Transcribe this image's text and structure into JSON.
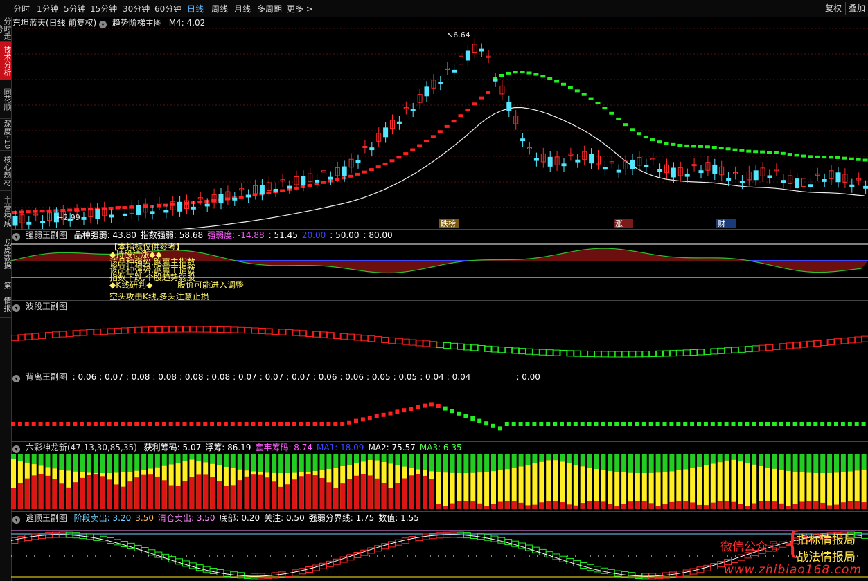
{
  "periods": [
    "分时",
    "1分钟",
    "5分钟",
    "15分钟",
    "30分钟",
    "60分钟",
    "日线",
    "周线",
    "月线",
    "多周期",
    "更多 >"
  ],
  "active_period": "日线",
  "top_right": {
    "fuquan": "复权",
    "diejia": "叠加"
  },
  "left_tabs": [
    "分时走势",
    "技术分析",
    "同花顺",
    "深度F10",
    "核心题材",
    "主营构成",
    "龙虎数据",
    "第一情报"
  ],
  "active_tab": "技术分析",
  "main": {
    "title": "东坦蓝天(日线 前复权)",
    "indicator": "趋势阶梯主图",
    "m4": "M4: 4.02",
    "high_label": "6.64",
    "low_label": "←2.99",
    "flags": [
      "跌榜",
      "涨",
      "财"
    ]
  },
  "panel1": {
    "name": "强弱王副图",
    "items": [
      {
        "label": "品种强弱: ",
        "value": "43.80",
        "color": "#ffffff"
      },
      {
        "label": "指数强弱: ",
        "value": "58.68",
        "color": "#ffffff"
      },
      {
        "label": "强弱度: ",
        "value": "-14.88",
        "color": "#ff5bff"
      },
      {
        "label": ": ",
        "value": "51.45",
        "color": "#ffffff"
      },
      {
        "label": "",
        "value": "20.00",
        "color": "#3a46ff"
      },
      {
        "label": ": ",
        "value": "50.00",
        "color": "#ffffff"
      },
      {
        "label": ": ",
        "value": "80.00",
        "color": "#ffffff"
      }
    ],
    "notes": [
      "【本指标仅供参考】",
      "◆持股待涨◆◆",
      "该品种强势,跑赢主指数",
      "该品种强势,跑赢主指数",
      "指数下跌,个股趋势弱股",
      "◆K线研判◆",
      "股价可能进入调整",
      "空头攻击K线,多头注意止损"
    ]
  },
  "panel2": {
    "name": "波段王副图"
  },
  "panel3": {
    "name": "背离王副图",
    "values": [
      "0.06",
      "0.07",
      "0.08",
      "0.08",
      "0.08",
      "0.08",
      "0.07",
      "0.07",
      "0.07",
      "0.06",
      "0.06",
      "0.05",
      "0.05",
      "0.04",
      "0.04"
    ],
    "last": "0.00"
  },
  "panel4": {
    "name": "六彩神龙新(47,13,30,85,35)",
    "items": [
      {
        "label": "获利筹码: ",
        "value": "5.07",
        "color": "#ffffff"
      },
      {
        "label": "浮筹: ",
        "value": "86.19",
        "color": "#ffffff"
      },
      {
        "label": "套牢筹码: ",
        "value": "8.74",
        "color": "#ff5bff"
      },
      {
        "label": "MA1: ",
        "value": "18.09",
        "color": "#3a46ff"
      },
      {
        "label": "MA2: ",
        "value": "75.57",
        "color": "#ffffff"
      },
      {
        "label": "MA3: ",
        "value": "6.35",
        "color": "#4dff4d"
      }
    ]
  },
  "panel5": {
    "name": "逃顶王副图",
    "items": [
      {
        "label": "阶段卖出: ",
        "value": "3.20",
        "color": "#6fd4ff"
      },
      {
        "label": "",
        "value": "3.50",
        "color": "#ffb65c"
      },
      {
        "label": "清仓卖出: ",
        "value": "3.50",
        "color": "#ff8cff"
      },
      {
        "label": "底部: ",
        "value": "0.20",
        "color": "#ffffff"
      },
      {
        "label": "关注: ",
        "value": "0.50",
        "color": "#ffffff"
      },
      {
        "label": "强弱分界线: ",
        "value": "1.75",
        "color": "#ffffff"
      },
      {
        "label": "数值: ",
        "value": "1.55",
        "color": "#ffffff"
      }
    ]
  },
  "watermark": {
    "wechat": "微信公众号",
    "brand1": "指标情报局",
    "brand2": "战法情报局",
    "site": "www.zhibiao168.com"
  },
  "colors": {
    "up": "#ff2a2a",
    "down": "#55e6ff",
    "ladder_up": "#ff2020",
    "ladder_down": "#22ee22",
    "active_tab": "#c8101a",
    "period_active": "#58b6ff"
  }
}
